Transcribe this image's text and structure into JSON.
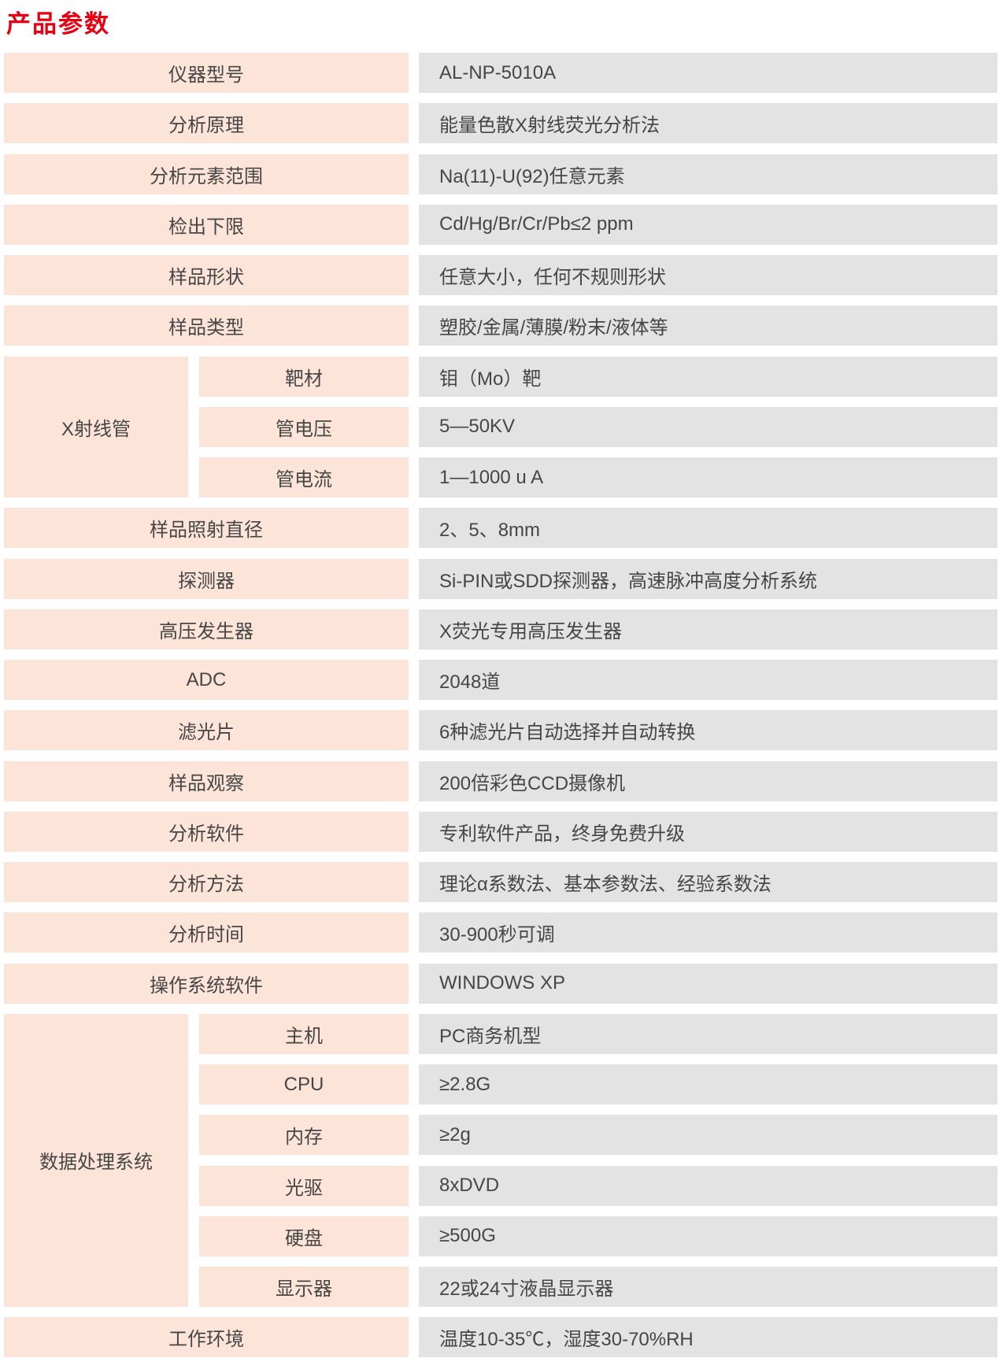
{
  "page": {
    "title": "产品参数"
  },
  "colors": {
    "title_red": "#e60012",
    "label_bg": "#fce4d9",
    "value_bg": "#e3e3e3",
    "text": "#464646"
  },
  "table": {
    "rows": [
      {
        "label": "仪器型号",
        "value": "AL-NP-5010A"
      },
      {
        "label": "分析原理",
        "value": "能量色散X射线荧光分析法"
      },
      {
        "label": "分析元素范围",
        "value": "Na(11)-U(92)任意元素"
      },
      {
        "label": "检出下限",
        "value": "Cd/Hg/Br/Cr/Pb≤2 ppm"
      },
      {
        "label": "样品形状",
        "value": "任意大小，任何不规则形状"
      },
      {
        "label": "样品类型",
        "value": "塑胶/金属/薄膜/粉末/液体等"
      },
      {
        "label": "X射线管",
        "sub_rows": [
          {
            "label": "靶材",
            "value": "钼（Mo）靶"
          },
          {
            "label": "管电压",
            "value": "5—50KV"
          },
          {
            "label": "管电流",
            "value": "1—1000 u A"
          }
        ]
      },
      {
        "label": "样品照射直径",
        "value": "2、5、8mm"
      },
      {
        "label": "探测器",
        "value": "Si-PIN或SDD探测器，高速脉冲高度分析系统"
      },
      {
        "label": "高压发生器",
        "value": "X荧光专用高压发生器"
      },
      {
        "label": "ADC",
        "value": "2048道"
      },
      {
        "label": "滤光片",
        "value": "6种滤光片自动选择并自动转换"
      },
      {
        "label": "样品观察",
        "value": "200倍彩色CCD摄像机"
      },
      {
        "label": "分析软件",
        "value": "专利软件产品，终身免费升级"
      },
      {
        "label": "分析方法",
        "value": "理论α系数法、基本参数法、经验系数法"
      },
      {
        "label": "分析时间",
        "value": "30-900秒可调"
      },
      {
        "label": "操作系统软件",
        "value": "WINDOWS XP"
      },
      {
        "label": "数据处理系统",
        "sub_rows": [
          {
            "label": "主机",
            "value": "PC商务机型"
          },
          {
            "label": "CPU",
            "value": "≥2.8G"
          },
          {
            "label": "内存",
            "value": "≥2g"
          },
          {
            "label": "光驱",
            "value": "8xDVD"
          },
          {
            "label": "硬盘",
            "value": "≥500G"
          },
          {
            "label": "显示器",
            "value": "22或24寸液晶显示器"
          }
        ]
      },
      {
        "label": "工作环境",
        "value": "温度10-35℃，湿度30-70%RH"
      }
    ]
  }
}
